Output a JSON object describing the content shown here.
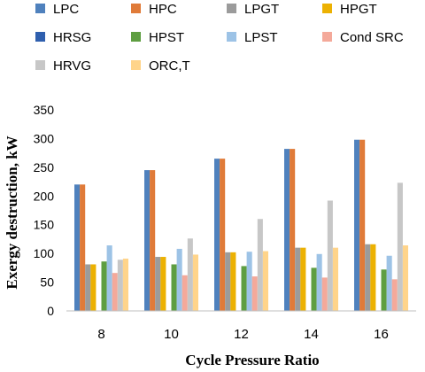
{
  "chart_data": {
    "type": "bar",
    "title": "",
    "xlabel": "Cycle Pressure Ratio",
    "ylabel": "Exergy destruction, kW",
    "categories": [
      "8",
      "10",
      "12",
      "14",
      "16"
    ],
    "ylim": [
      0,
      350
    ],
    "yticks": [
      "0",
      "50",
      "100",
      "150",
      "200",
      "250",
      "300",
      "350"
    ],
    "grid": false,
    "legend_position": "top",
    "series": [
      {
        "name": "LPC",
        "color": "#4f81bd",
        "values": [
          220,
          245,
          265,
          282,
          298
        ]
      },
      {
        "name": "HPC",
        "color": "#e07b39",
        "values": [
          220,
          245,
          265,
          282,
          298
        ]
      },
      {
        "name": "LPGT",
        "color": "#9b9b9b",
        "values": [
          81,
          94,
          102,
          110,
          116
        ]
      },
      {
        "name": "HPGT",
        "color": "#ecb102",
        "values": [
          81,
          94,
          102,
          110,
          116
        ]
      },
      {
        "name": "HRSG",
        "color": "#2f5fae",
        "values": [
          0,
          0,
          0,
          0,
          0
        ]
      },
      {
        "name": "HPST",
        "color": "#5e9e41",
        "values": [
          86,
          81,
          78,
          75,
          72
        ]
      },
      {
        "name": "LPST",
        "color": "#9dc3e6",
        "values": [
          114,
          108,
          103,
          99,
          96
        ]
      },
      {
        "name": "Cond SRC",
        "color": "#f4a99a",
        "values": [
          66,
          62,
          60,
          58,
          55
        ]
      },
      {
        "name": "HRVG",
        "color": "#c7c7c7",
        "values": [
          89,
          126,
          160,
          192,
          223
        ]
      },
      {
        "name": "ORC,T",
        "color": "#ffd48a",
        "values": [
          91,
          98,
          104,
          110,
          114
        ]
      }
    ]
  }
}
